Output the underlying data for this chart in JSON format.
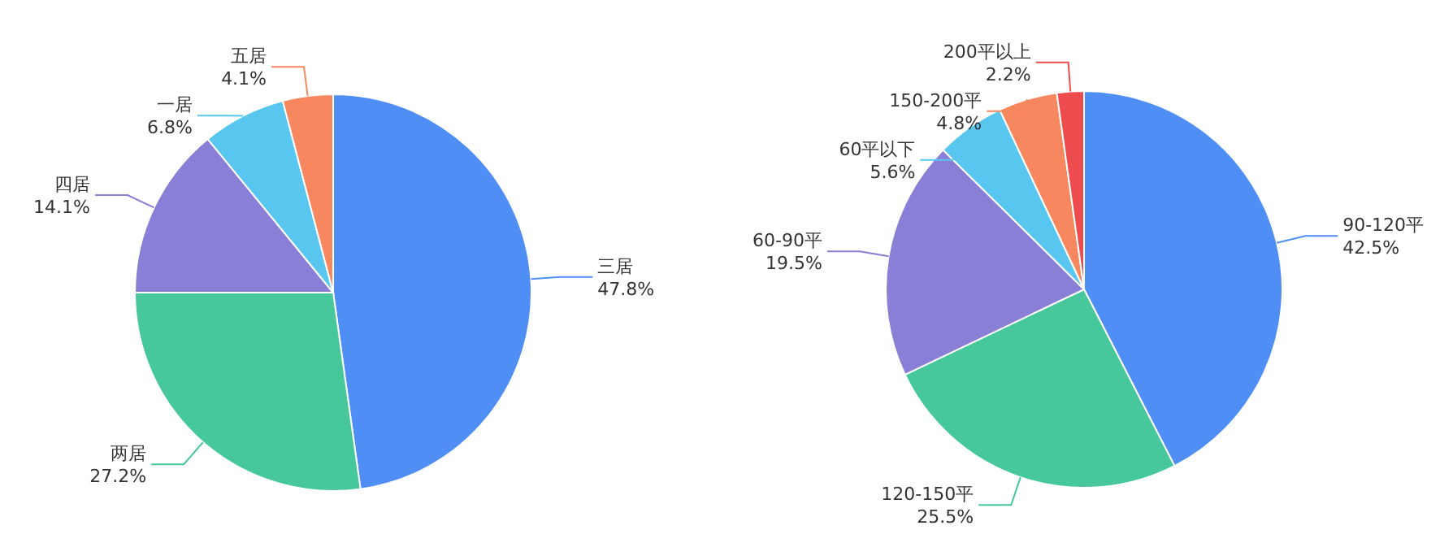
{
  "chart_data": [
    {
      "type": "pie",
      "categories": [
        "三居",
        "两居",
        "四居",
        "一居",
        "五居"
      ],
      "values": [
        47.8,
        27.2,
        14.1,
        6.8,
        4.1
      ],
      "colors": [
        "#4f8ef5",
        "#46c79c",
        "#8a7fd6",
        "#58c6ee",
        "#f7875f"
      ],
      "value_labels": [
        "47.8%",
        "27.2%",
        "14.1%",
        "6.8%",
        "4.1%"
      ]
    },
    {
      "type": "pie",
      "categories": [
        "90-120平",
        "120-150平",
        "60-90平",
        "60平以下",
        "150-200平",
        "200平以上"
      ],
      "values": [
        42.5,
        25.5,
        19.5,
        5.6,
        4.8,
        2.2
      ],
      "colors": [
        "#4f8ef5",
        "#46c79c",
        "#8a7fd6",
        "#58c6ee",
        "#f7875f",
        "#ee4b4f"
      ],
      "value_labels": [
        "42.5%",
        "25.5%",
        "19.5%",
        "5.6%",
        "4.8%",
        "2.2%"
      ]
    }
  ]
}
